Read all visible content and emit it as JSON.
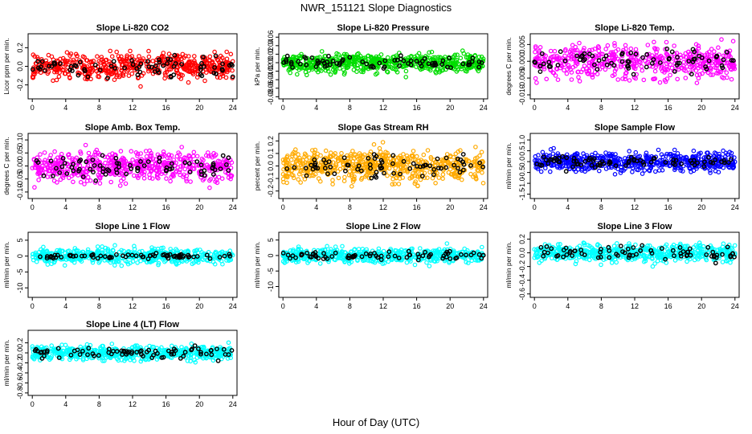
{
  "figure": {
    "title": "NWR_151121  Slope Diagnostics",
    "xlabel": "Hour of Day (UTC)"
  },
  "chart_data": [
    {
      "type": "scatter",
      "title": "Slope Li-820 CO2",
      "ylabel": "Licor ppm per min.",
      "xlim": [
        -0.5,
        24.5
      ],
      "ylim": [
        -0.35,
        0.35
      ],
      "xticks": [
        0,
        4,
        8,
        12,
        16,
        20,
        24
      ],
      "yticks": [
        -0.2,
        0.0,
        0.2
      ],
      "yticklabels": [
        "-0.2",
        "0.0",
        "0.2"
      ],
      "series": [
        {
          "color": "#ff0000",
          "count": 520,
          "spread": 0.1,
          "clip": 0.32
        },
        {
          "color": "#000000",
          "count": 75,
          "spread": 0.07,
          "clip": 0.2
        }
      ]
    },
    {
      "type": "scatter",
      "title": "Slope Li-820 Pressure",
      "ylabel": "kPa per min.",
      "xlim": [
        -0.5,
        24.5
      ],
      "ylim": [
        -0.085,
        0.068
      ],
      "xticks": [
        0,
        4,
        8,
        12,
        16,
        20,
        24
      ],
      "yticks": [
        -0.08,
        -0.06,
        -0.04,
        -0.02,
        0.0,
        0.02,
        0.04,
        0.06
      ],
      "yticklabels": [
        "-0.08",
        "-0.06",
        "-0.04",
        "-0.02",
        "0.00",
        "0.02",
        "0.04",
        "0.06"
      ],
      "series": [
        {
          "color": "#00dd00",
          "count": 620,
          "spread": 0.015,
          "clip": 0.065
        },
        {
          "color": "#000000",
          "count": 75,
          "spread": 0.01,
          "clip": 0.03
        }
      ]
    },
    {
      "type": "scatter",
      "title": "Slope Li-820 Temp.",
      "ylabel": "degrees C per min.",
      "xlim": [
        -0.5,
        24.5
      ],
      "ylim": [
        -0.0112,
        0.0082
      ],
      "xticks": [
        0,
        4,
        8,
        12,
        16,
        20,
        24
      ],
      "yticks": [
        -0.01,
        -0.005,
        0.0,
        0.005
      ],
      "yticklabels": [
        "-0.010",
        "-0.005",
        "0.000",
        "0.005"
      ],
      "series": [
        {
          "color": "#ff00ff",
          "count": 520,
          "spread": 0.0035,
          "clip": 0.0095
        },
        {
          "color": "#000000",
          "count": 75,
          "spread": 0.0025,
          "clip": 0.006
        }
      ]
    },
    {
      "type": "scatter",
      "title": "Slope Amb. Box Temp.",
      "ylabel": "degrees C per min.",
      "xlim": [
        -0.5,
        24.5
      ],
      "ylim": [
        -0.125,
        0.125
      ],
      "xticks": [
        0,
        4,
        8,
        12,
        16,
        20,
        24
      ],
      "yticks": [
        -0.1,
        -0.05,
        0.0,
        0.05,
        0.1
      ],
      "yticklabels": [
        "-0.10",
        "-0.05",
        "0.00",
        "0.05",
        "0.10"
      ],
      "series": [
        {
          "color": "#ff00ff",
          "count": 560,
          "spread": 0.04,
          "clip": 0.115
        },
        {
          "color": "#000000",
          "count": 75,
          "spread": 0.03,
          "clip": 0.08
        }
      ]
    },
    {
      "type": "scatter",
      "title": "Slope Gas Stream RH",
      "ylabel": "percent per min.",
      "xlim": [
        -0.5,
        24.5
      ],
      "ylim": [
        -0.26,
        0.26
      ],
      "xticks": [
        0,
        4,
        8,
        12,
        16,
        20,
        24
      ],
      "yticks": [
        -0.2,
        -0.1,
        0.0,
        0.1,
        0.2
      ],
      "yticklabels": [
        "-0.2",
        "-0.1",
        "0.0",
        "0.1",
        "0.2"
      ],
      "series": [
        {
          "color": "#ffaa00",
          "count": 620,
          "spread": 0.085,
          "clip": 0.24
        },
        {
          "color": "#000000",
          "count": 75,
          "spread": 0.06,
          "clip": 0.15
        }
      ]
    },
    {
      "type": "scatter",
      "title": "Slope Sample Flow",
      "ylabel": "ml/min per min.",
      "xlim": [
        -0.5,
        24.5
      ],
      "ylim": [
        -1.7,
        1.3
      ],
      "xticks": [
        0,
        4,
        8,
        12,
        16,
        20,
        24
      ],
      "yticks": [
        -1.5,
        -1.0,
        -0.5,
        0.0,
        0.5,
        1.0
      ],
      "yticklabels": [
        "-1.5",
        "-1.0",
        "-0.5",
        "0.0",
        "0.5",
        "1.0"
      ],
      "series": [
        {
          "color": "#0000ff",
          "count": 560,
          "spread": 0.3,
          "clip": 1.2
        },
        {
          "color": "#000000",
          "count": 75,
          "spread": 0.2,
          "clip": 0.6
        }
      ]
    },
    {
      "type": "scatter",
      "title": "Slope Line 1 Flow",
      "ylabel": "ml/min per min.",
      "xlim": [
        -0.5,
        24.5
      ],
      "ylim": [
        -13,
        7.5
      ],
      "xticks": [
        0,
        4,
        8,
        12,
        16,
        20,
        24
      ],
      "yticks": [
        -10,
        -5,
        0,
        5
      ],
      "yticklabels": [
        "-10",
        "-5",
        "0",
        "5"
      ],
      "series": [
        {
          "color": "#00ffff",
          "count": 520,
          "spread": 1.6,
          "clip": 7
        },
        {
          "color": "#000000",
          "count": 75,
          "spread": 0.6,
          "clip": 2
        }
      ]
    },
    {
      "type": "scatter",
      "title": "Slope Line 2 Flow",
      "ylabel": "ml/min per min.",
      "xlim": [
        -0.5,
        24.5
      ],
      "ylim": [
        -13.5,
        7.5
      ],
      "xticks": [
        0,
        4,
        8,
        12,
        16,
        20,
        24
      ],
      "yticks": [
        -10,
        -5,
        0,
        5
      ],
      "yticklabels": [
        "-10",
        "-5",
        "0",
        "5"
      ],
      "series": [
        {
          "color": "#00ffff",
          "count": 520,
          "spread": 1.6,
          "clip": 7
        },
        {
          "color": "#000000",
          "count": 75,
          "spread": 0.8,
          "clip": 2.5
        }
      ]
    },
    {
      "type": "scatter",
      "title": "Slope Line 3 Flow",
      "ylabel": "ml/min per min.",
      "xlim": [
        -0.5,
        24.5
      ],
      "ylim": [
        -0.65,
        0.3
      ],
      "xticks": [
        0,
        4,
        8,
        12,
        16,
        20,
        24
      ],
      "yticks": [
        -0.6,
        -0.4,
        -0.2,
        0.0,
        0.2
      ],
      "yticklabels": [
        "-0.6",
        "-0.4",
        "-0.2",
        "0.0",
        "0.2"
      ],
      "series": [
        {
          "color": "#00ffff",
          "count": 560,
          "spread": 0.09,
          "clip": 0.28
        },
        {
          "color": "#000000",
          "count": 75,
          "spread": 0.07,
          "clip": 0.2
        }
      ]
    },
    {
      "type": "scatter",
      "title": "Slope Line 4 (LT) Flow",
      "ylabel": "ml/min per min.",
      "xlim": [
        -0.5,
        24.5
      ],
      "ylim": [
        -0.85,
        0.45
      ],
      "xticks": [
        0,
        4,
        8,
        12,
        16,
        20,
        24
      ],
      "yticks": [
        -0.8,
        -0.6,
        -0.4,
        -0.2,
        0.0,
        0.2
      ],
      "yticklabels": [
        "-0.8",
        "-0.6",
        "-0.4",
        "-0.2",
        "0.0",
        "0.2"
      ],
      "series": [
        {
          "color": "#00ffff",
          "count": 560,
          "spread": 0.1,
          "clip": 0.4
        },
        {
          "color": "#000000",
          "count": 75,
          "spread": 0.08,
          "clip": 0.3
        }
      ]
    }
  ]
}
